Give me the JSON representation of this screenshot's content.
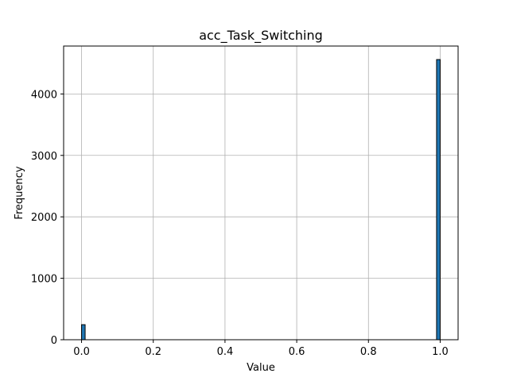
{
  "chart_data": {
    "type": "bar",
    "title": "acc_Task_Switching",
    "xlabel": "Value",
    "ylabel": "Frequency",
    "xlim": [
      -0.05,
      1.05
    ],
    "ylim": [
      0,
      4780
    ],
    "x_ticks": [
      0.0,
      0.2,
      0.4,
      0.6,
      0.8,
      1.0
    ],
    "x_tick_labels": [
      "0.0",
      "0.2",
      "0.4",
      "0.6",
      "0.8",
      "1.0"
    ],
    "y_ticks": [
      0,
      1000,
      2000,
      3000,
      4000
    ],
    "y_tick_labels": [
      "0",
      "1000",
      "2000",
      "3000",
      "4000"
    ],
    "grid": true,
    "bin_width": 0.01,
    "bins": [
      {
        "x_start": 0.0,
        "x_end": 0.01,
        "count": 245
      },
      {
        "x_start": 0.99,
        "x_end": 1.0,
        "count": 4560
      }
    ],
    "colors": {
      "bar_fill": "#1f77b4",
      "bar_edge": "#000000",
      "grid": "#b0b0b0"
    }
  }
}
